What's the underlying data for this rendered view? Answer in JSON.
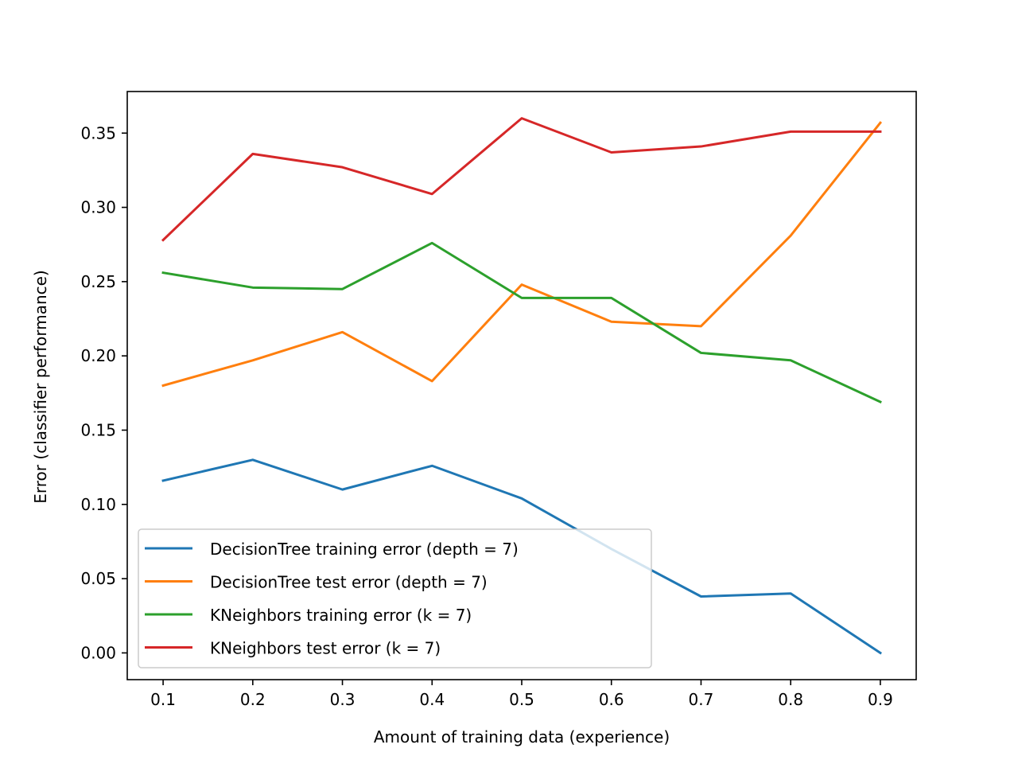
{
  "chart_data": {
    "type": "line",
    "title": "",
    "xlabel": "Amount of training data (experience)",
    "ylabel": "Error (classifier performance)",
    "xlim": [
      0.06,
      0.94
    ],
    "ylim": [
      -0.018,
      0.378
    ],
    "x": [
      0.1,
      0.2,
      0.3,
      0.4,
      0.5,
      0.6,
      0.7,
      0.8,
      0.9
    ],
    "x_ticks": [
      0.1,
      0.2,
      0.3,
      0.4,
      0.5,
      0.6,
      0.7,
      0.8,
      0.9
    ],
    "x_tick_labels": [
      "0.1",
      "0.2",
      "0.3",
      "0.4",
      "0.5",
      "0.6",
      "0.7",
      "0.8",
      "0.9"
    ],
    "y_ticks": [
      0.0,
      0.05,
      0.1,
      0.15,
      0.2,
      0.25,
      0.3,
      0.35
    ],
    "y_tick_labels": [
      "0.00",
      "0.05",
      "0.10",
      "0.15",
      "0.20",
      "0.25",
      "0.30",
      "0.35"
    ],
    "grid": false,
    "legend_position": "lower-left",
    "series": [
      {
        "name": "DecisionTree training error (depth = 7)",
        "color": "#1f77b4",
        "values": [
          0.116,
          0.13,
          0.11,
          0.126,
          0.104,
          0.07,
          0.038,
          0.04,
          0.0
        ]
      },
      {
        "name": "DecisionTree test error (depth = 7)",
        "color": "#ff7f0e",
        "values": [
          0.18,
          0.197,
          0.216,
          0.183,
          0.248,
          0.223,
          0.22,
          0.281,
          0.357
        ]
      },
      {
        "name": "KNeighbors training error (k = 7)",
        "color": "#2ca02c",
        "values": [
          0.256,
          0.246,
          0.245,
          0.276,
          0.239,
          0.239,
          0.202,
          0.197,
          0.169
        ]
      },
      {
        "name": "KNeighbors test error (k = 7)",
        "color": "#d62728",
        "values": [
          0.278,
          0.336,
          0.327,
          0.309,
          0.36,
          0.337,
          0.341,
          0.351,
          0.351
        ]
      }
    ]
  }
}
